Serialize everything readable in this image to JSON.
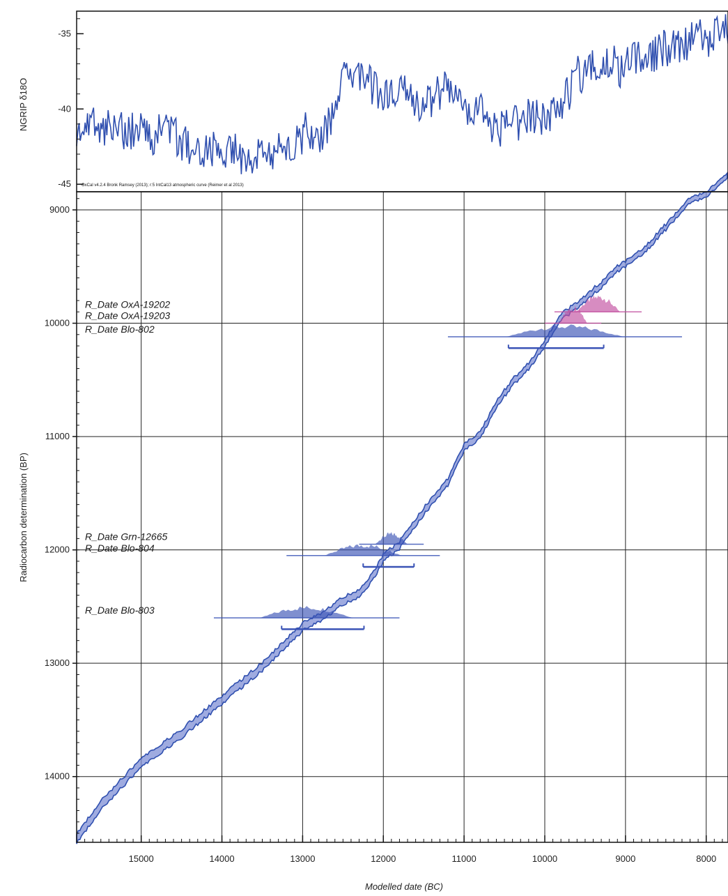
{
  "chart_data": [
    {
      "type": "line",
      "panel": "climate",
      "ylabel": "NGRIP δ18O",
      "credit": "OxCal v4.2.4 Bronk Ramsey (2013); r:5 IntCal13 atmospheric curve (Reimer et al 2013)",
      "ylim": [
        -45.5,
        -33.5
      ],
      "yticks": [
        -35,
        -40,
        -45
      ],
      "xlim": [
        15800,
        7730
      ],
      "series": [
        {
          "x": [
            15800,
            15650,
            15500,
            15350,
            15200,
            15050,
            14900,
            14750,
            14600,
            14450,
            14300,
            14150,
            14000,
            13850,
            13700,
            13550,
            13400,
            13250,
            13100,
            12950,
            12800,
            12650,
            12550,
            12500,
            12400,
            12300,
            12200,
            12100,
            11950,
            11800,
            11650,
            11500,
            11350,
            11200,
            11050,
            10900,
            10750,
            10600,
            10450,
            10300,
            10150,
            10000,
            9850,
            9700,
            9600,
            9500,
            9350,
            9200,
            9050,
            8900,
            8750,
            8600,
            8450,
            8300,
            8150,
            8000,
            7850,
            7730
          ],
          "y": [
            -41.5,
            -40.5,
            -41.5,
            -40.8,
            -41.8,
            -41.0,
            -42.0,
            -41.3,
            -41.8,
            -42.3,
            -42.8,
            -42.5,
            -43.0,
            -42.8,
            -43.5,
            -42.8,
            -43.5,
            -42.0,
            -42.5,
            -41.3,
            -42.0,
            -41.0,
            -39.0,
            -36.8,
            -37.5,
            -38.2,
            -37.8,
            -38.8,
            -39.0,
            -38.5,
            -39.5,
            -40.0,
            -39.2,
            -38.5,
            -39.0,
            -40.3,
            -40.0,
            -41.5,
            -41.0,
            -41.0,
            -40.3,
            -40.8,
            -40.0,
            -39.0,
            -37.5,
            -37.8,
            -37.0,
            -36.6,
            -37.4,
            -36.8,
            -36.2,
            -36.3,
            -35.8,
            -35.7,
            -35.2,
            -35.5,
            -35.0,
            -34.8
          ]
        }
      ]
    },
    {
      "type": "area",
      "panel": "calibration",
      "xlabel": "Modelled date (BC)",
      "ylabel": "Radiocarbon determination (BP)",
      "xlim": [
        15800,
        7730
      ],
      "ylim": [
        14580,
        8840
      ],
      "xticks": [
        15000,
        14000,
        13000,
        12000,
        11000,
        10000,
        9000,
        8000
      ],
      "yticks": [
        9000,
        10000,
        11000,
        12000,
        13000,
        14000
      ],
      "grid": true,
      "calibration_curve": {
        "x": [
          15800,
          15500,
          15000,
          14500,
          14000,
          13500,
          13000,
          12700,
          12500,
          12300,
          12100,
          12000,
          11800,
          11500,
          11200,
          11000,
          10800,
          10600,
          10400,
          10200,
          10000,
          9800,
          9500,
          9300,
          9100,
          8800,
          8500,
          8200,
          8000,
          7730
        ],
        "y": [
          14550,
          14250,
          13880,
          13620,
          13320,
          13030,
          12680,
          12560,
          12450,
          12390,
          12200,
          12070,
          11960,
          11660,
          11400,
          11100,
          10980,
          10720,
          10520,
          10380,
          10180,
          9950,
          9780,
          9660,
          9520,
          9380,
          9150,
          8920,
          8860,
          8700
        ]
      },
      "dates": [
        {
          "label": "R_Date OxA-19202",
          "value": 9900,
          "color": "#c24f9f",
          "range_from": 9880,
          "range_to": 8800
        },
        {
          "label": "R_Date OxA-19203",
          "value": 10000,
          "color": "#c24f9f",
          "range_from": 10000,
          "range_to": 9300
        },
        {
          "label": "R_Date Blo-802",
          "value": 10120,
          "color": "#3a53b6",
          "range_from": 11200,
          "range_to": 8300
        },
        {
          "label": "R_Date Grn-12665",
          "value": 11950,
          "color": "#3a53b6",
          "range_from": 12300,
          "range_to": 11500
        },
        {
          "label": "R_Date Blo-804",
          "value": 12050,
          "color": "#3a53b6",
          "range_from": 13200,
          "range_to": 11300
        },
        {
          "label": "R_Date Blo-803",
          "value": 12600,
          "color": "#3a53b6",
          "range_from": 14100,
          "range_to": 11800
        }
      ],
      "posterior_ranges": [
        {
          "from": 10450,
          "to": 9270,
          "y": 10220
        },
        {
          "from": 12250,
          "to": 11620,
          "y": 12150
        },
        {
          "from": 13260,
          "to": 12240,
          "y": 12700
        }
      ]
    }
  ],
  "colors": {
    "curve_line": "#2f4faf",
    "curve_fill": "#7f8fd6",
    "pink": "#c24f9f",
    "blue_dist": "#3a53b6",
    "grid": "#222222"
  }
}
